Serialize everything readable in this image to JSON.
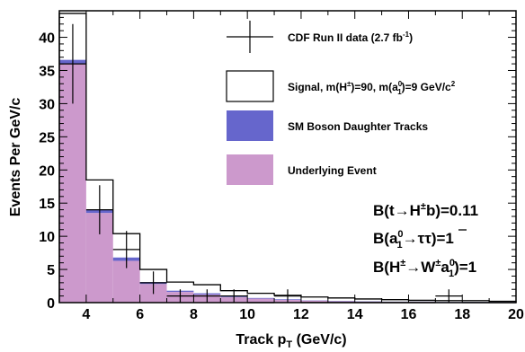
{
  "chart_data": {
    "type": "histogram",
    "xlabel": "Track p",
    "xlabel_sub": "T",
    "xlabel_units": "(GeV/c)",
    "ylabel": "Events Per GeV/c",
    "xlim": [
      3,
      20
    ],
    "ylim": [
      0,
      44
    ],
    "xticks": [
      4,
      6,
      8,
      10,
      12,
      14,
      16,
      18,
      20
    ],
    "yticks": [
      0,
      5,
      10,
      15,
      20,
      25,
      30,
      35,
      40
    ],
    "bin_edges": [
      3,
      4,
      5,
      6,
      7,
      8,
      9,
      10,
      11,
      12,
      13,
      14,
      15,
      16,
      17,
      18,
      19,
      20
    ],
    "series": [
      {
        "name": "Underlying Event",
        "color": "#cc99cc",
        "values": [
          36.0,
          13.5,
          6.3,
          2.8,
          1.6,
          1.2,
          0.8,
          0.6,
          0.4,
          0.3,
          0.2,
          0.15,
          0.1,
          0.1,
          0.05,
          0.05,
          0.05
        ]
      },
      {
        "name": "SM Boson Daughter Tracks",
        "color": "#6666cc",
        "values": [
          0.6,
          0.5,
          0.5,
          0.3,
          0.2,
          0.2,
          0.1,
          0.1,
          0.1,
          0.05,
          0.05,
          0.05,
          0.05,
          0.05,
          0.05,
          0.05,
          0.05
        ]
      },
      {
        "name": "Signal, m(H±)=90, m(a10)=9 GeV/c2",
        "color": "#ffffff",
        "values": [
          7.0,
          4.5,
          3.6,
          1.9,
          1.3,
          1.3,
          0.9,
          0.7,
          0.6,
          0.5,
          0.45,
          0.35,
          0.3,
          0.2,
          0.2,
          0.2,
          0.1
        ]
      }
    ],
    "signal_totals": [
      43.6,
      18.5,
      10.4,
      5.0,
      3.1,
      2.7,
      1.8,
      1.4,
      1.1,
      0.85,
      0.7,
      0.55,
      0.45,
      0.35,
      0.3,
      0.3,
      0.2
    ],
    "data_points": {
      "name": "CDF Run II data (2.7 fb-1)",
      "x": [
        3.5,
        4.5,
        5.5,
        6.5,
        7.5,
        8.5,
        9.5,
        10.5,
        11.5,
        12.5,
        13.5,
        14.5,
        15.5,
        16.5,
        17.5,
        18.5,
        19.5
      ],
      "y": [
        36,
        14,
        8,
        3,
        1,
        1,
        1,
        0,
        1,
        0,
        0,
        0,
        0,
        0,
        1,
        0,
        0
      ],
      "yerr": [
        6,
        3.7,
        2.8,
        1.7,
        1,
        1,
        1,
        0,
        1,
        0,
        0,
        0,
        0,
        0,
        1,
        0,
        0
      ]
    },
    "legend": [
      {
        "key": "data",
        "label": "CDF Run II data (2.7 fb",
        "sup": "-1",
        "tail": ")"
      },
      {
        "key": "signal",
        "label": "Signal, m(H",
        "sup1": "±",
        "mid": ")=90, m(a",
        "sup2": "0",
        "sub2": "1",
        "tail": ")=9 GeV/c",
        "sup3": "2"
      },
      {
        "key": "sm",
        "label": "SM Boson Daughter Tracks"
      },
      {
        "key": "ue",
        "label": "Underlying Event"
      }
    ],
    "annotations": {
      "line1": {
        "a": "B(t",
        "b": "H",
        "c": "±",
        "d": "b)=0.11"
      },
      "line2": {
        "a": "B(a",
        "sup": "0",
        "sub": "1",
        "b": "τ",
        "c": "τ",
        "d": ")=1"
      },
      "line3": {
        "a": "B(H",
        "sup": "±",
        "b": "W",
        "sup2": "±",
        "c": "a",
        "sup3": "0",
        "sub3": "1",
        "d": ")=1"
      }
    },
    "arrow": "→",
    "grid": false
  }
}
